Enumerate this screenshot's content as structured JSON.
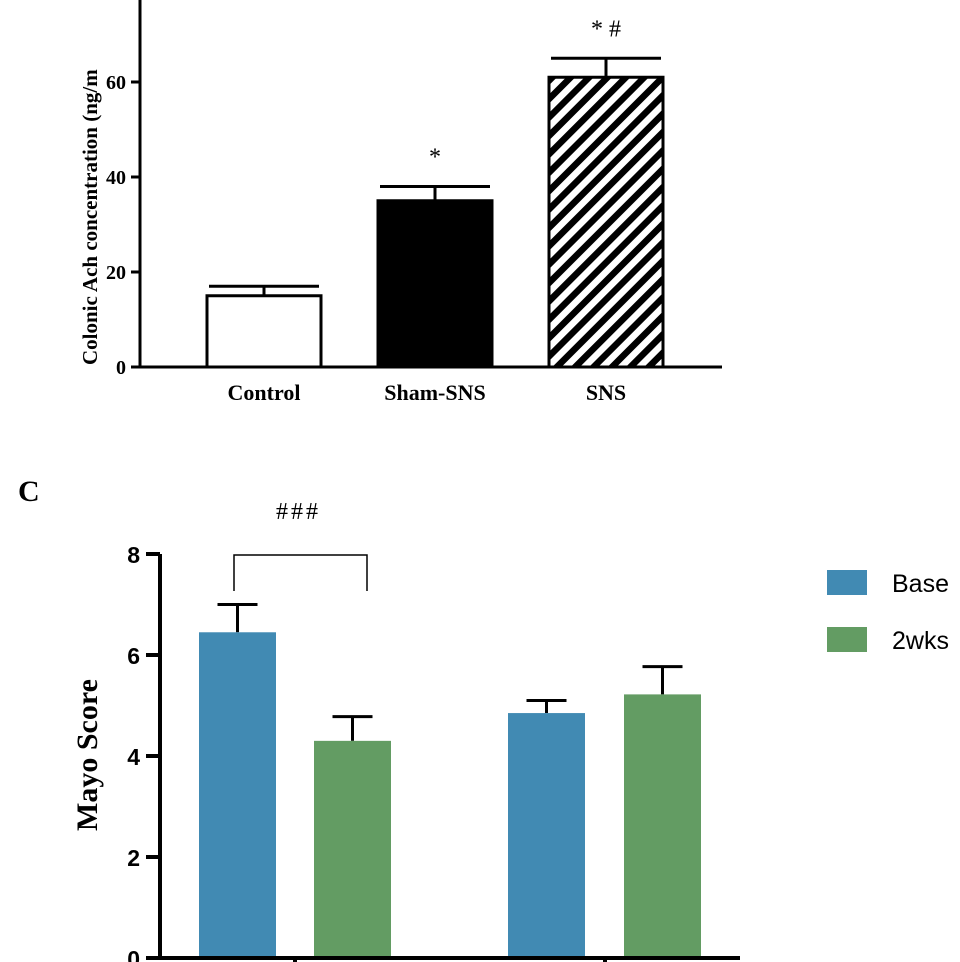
{
  "chart_data": [
    {
      "type": "bar",
      "panel_label": "",
      "ylabel": "Colonic Ach concentration (ng/m",
      "categories": [
        "Control",
        "Sham-SNS",
        "SNS"
      ],
      "values": [
        15,
        35,
        61
      ],
      "errors": [
        2,
        3,
        4
      ],
      "fills": [
        "white",
        "black",
        "hatched"
      ],
      "yticks": [
        "0",
        "20",
        "40",
        "60"
      ],
      "ylim": [
        0,
        80
      ],
      "annotations": [
        {
          "category": "Sham-SNS",
          "text": "*"
        },
        {
          "category": "SNS",
          "text": "* #"
        }
      ]
    },
    {
      "type": "bar",
      "panel_label": "C",
      "ylabel": "Mayo Score",
      "groups": 2,
      "series": [
        {
          "name": "Base",
          "color": "#418ab3",
          "values": [
            6.45,
            4.85
          ],
          "errors": [
            0.55,
            0.25
          ]
        },
        {
          "name": "2wks",
          "color": "#639c63",
          "values": [
            4.3,
            5.22
          ],
          "errors": [
            0.48,
            0.55
          ]
        }
      ],
      "yticks": [
        "0",
        "2",
        "4",
        "6",
        "8"
      ],
      "ylim": [
        0,
        8
      ],
      "significance": {
        "text": "###",
        "between": [
          0,
          1
        ]
      },
      "legend_position": "right"
    }
  ]
}
